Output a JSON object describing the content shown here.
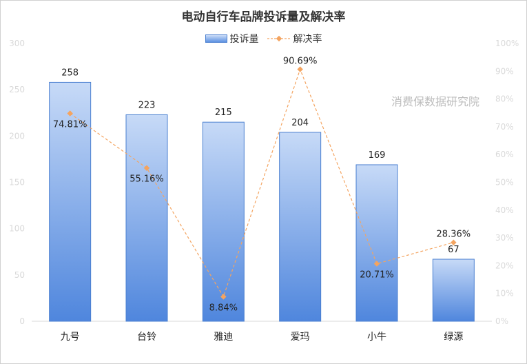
{
  "chart_data": {
    "type": "bar",
    "title": "电动自行车品牌投诉量及解决率",
    "categories": [
      "九号",
      "台铃",
      "雅迪",
      "爱玛",
      "小牛",
      "绿源"
    ],
    "series": [
      {
        "name": "投诉量",
        "type": "bar",
        "axis": "left",
        "values": [
          258,
          223,
          215,
          204,
          169,
          67
        ],
        "labels": [
          "258",
          "223",
          "215",
          "204",
          "169",
          "67"
        ],
        "color": "#5b8fe0"
      },
      {
        "name": "解决率",
        "type": "line",
        "axis": "right",
        "values": [
          74.81,
          55.16,
          8.84,
          90.69,
          20.71,
          28.36
        ],
        "labels": [
          "74.81%",
          "55.16%",
          "8.84%",
          "90.69%",
          "20.71%",
          "28.36%"
        ],
        "color": "#f4a460"
      }
    ],
    "y_left": {
      "min": 0,
      "max": 300,
      "ticks": [
        "0",
        "50",
        "100",
        "150",
        "200",
        "250",
        "300"
      ]
    },
    "y_right": {
      "min": 0,
      "max": 100,
      "ticks": [
        "0%",
        "10%",
        "20%",
        "30%",
        "40%",
        "50%",
        "60%",
        "70%",
        "80%",
        "90%",
        "100%"
      ]
    },
    "grid": false,
    "legend_position": "top"
  },
  "watermark": "消费保数据研究院"
}
